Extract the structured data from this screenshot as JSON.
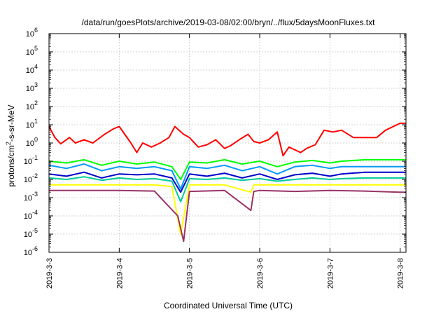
{
  "chart_data": {
    "type": "line",
    "title": "/data/run/goesPlots/archive/2019-03-08/02:00/bryn/../flux/5daysMoonFluxes.txt",
    "xlabel": "Coordinated Universal Time (UTC)",
    "ylabel": "protons/cm2-s-sr-MeV",
    "ylabel_parts": {
      "pre": "protons/cm",
      "sup": "2",
      "post": "-s-sr-MeV"
    },
    "y_scale": "log",
    "ylim": [
      1e-06,
      1000000.0
    ],
    "y_ticks": [
      {
        "base": "10",
        "exp": "-6"
      },
      {
        "base": "10",
        "exp": "-5"
      },
      {
        "base": "10",
        "exp": "-4"
      },
      {
        "base": "10",
        "exp": "-3"
      },
      {
        "base": "10",
        "exp": "-2"
      },
      {
        "base": "10",
        "exp": "-1"
      },
      {
        "base": "10",
        "exp": "0"
      },
      {
        "base": "10",
        "exp": "1"
      },
      {
        "base": "10",
        "exp": "2"
      },
      {
        "base": "10",
        "exp": "3"
      },
      {
        "base": "10",
        "exp": "4"
      },
      {
        "base": "10",
        "exp": "5"
      },
      {
        "base": "10",
        "exp": "6"
      }
    ],
    "xlim": [
      "2019-03-03",
      "2019-03-08 02:00"
    ],
    "x_ticks": [
      "2019-3-3",
      "2019-3-4",
      "2019-3-5",
      "2019-3-6",
      "2019-3-7",
      "2019-3-8"
    ],
    "grid": true,
    "series": [
      {
        "color": "#ff0000",
        "x": [
          "2019-03-03 00:00",
          "2019-03-03 02:00",
          "2019-03-03 04:00",
          "2019-03-03 07:00",
          "2019-03-03 09:00",
          "2019-03-03 12:00",
          "2019-03-03 15:00",
          "2019-03-03 19:00",
          "2019-03-03 22:00",
          "2019-03-04 00:00",
          "2019-03-04 04:00",
          "2019-03-04 06:00",
          "2019-03-04 08:00",
          "2019-03-04 11:00",
          "2019-03-04 14:00",
          "2019-03-04 17:00",
          "2019-03-04 19:00",
          "2019-03-04 22:00",
          "2019-03-05 00:00",
          "2019-03-05 03:00",
          "2019-03-05 06:00",
          "2019-03-05 09:00",
          "2019-03-05 12:00",
          "2019-03-05 14:00",
          "2019-03-05 17:00",
          "2019-03-05 20:00",
          "2019-03-05 22:00",
          "2019-03-06 00:00",
          "2019-03-06 03:00",
          "2019-03-06 06:00",
          "2019-03-06 08:00",
          "2019-03-06 10:00",
          "2019-03-06 14:00",
          "2019-03-06 16:00",
          "2019-03-06 19:00",
          "2019-03-06 22:00",
          "2019-03-07 01:00",
          "2019-03-07 04:00",
          "2019-03-07 08:00",
          "2019-03-07 12:00",
          "2019-03-07 16:00",
          "2019-03-07 19:00",
          "2019-03-08 00:00",
          "2019-03-08 02:00"
        ],
        "y": [
          8,
          2,
          0.9,
          2,
          1,
          1.5,
          1,
          3,
          6,
          8,
          1,
          0.3,
          1,
          0.6,
          1,
          2,
          8,
          3,
          2,
          0.6,
          0.8,
          1.5,
          0.5,
          0.7,
          1.5,
          3,
          1.2,
          1,
          1.5,
          4,
          0.2,
          0.6,
          0.3,
          0.5,
          0.8,
          5,
          4,
          5,
          2,
          2,
          2,
          5,
          12,
          12
        ]
      },
      {
        "color": "#00ff00",
        "x": [
          "2019-03-03 00:00",
          "2019-03-03 06:00",
          "2019-03-03 12:00",
          "2019-03-03 18:00",
          "2019-03-04 00:00",
          "2019-03-04 06:00",
          "2019-03-04 12:00",
          "2019-03-04 18:00",
          "2019-03-04 21:00",
          "2019-03-05 00:00",
          "2019-03-05 06:00",
          "2019-03-05 12:00",
          "2019-03-05 18:00",
          "2019-03-06 00:00",
          "2019-03-06 06:00",
          "2019-03-06 12:00",
          "2019-03-06 18:00",
          "2019-03-07 00:00",
          "2019-03-07 04:00",
          "2019-03-07 12:00",
          "2019-03-08 00:00",
          "2019-03-08 02:00"
        ],
        "y": [
          0.1,
          0.08,
          0.12,
          0.06,
          0.1,
          0.07,
          0.09,
          0.05,
          0.01,
          0.09,
          0.08,
          0.12,
          0.07,
          0.1,
          0.05,
          0.09,
          0.11,
          0.08,
          0.1,
          0.12,
          0.12,
          0.12
        ]
      },
      {
        "color": "#0099ff",
        "x": [
          "2019-03-03 00:00",
          "2019-03-03 06:00",
          "2019-03-03 12:00",
          "2019-03-03 18:00",
          "2019-03-04 00:00",
          "2019-03-04 06:00",
          "2019-03-04 12:00",
          "2019-03-04 18:00",
          "2019-03-04 21:00",
          "2019-03-05 00:00",
          "2019-03-05 06:00",
          "2019-03-05 12:00",
          "2019-03-05 18:00",
          "2019-03-06 00:00",
          "2019-03-06 06:00",
          "2019-03-06 12:00",
          "2019-03-06 18:00",
          "2019-03-07 00:00",
          "2019-03-07 04:00",
          "2019-03-07 12:00",
          "2019-03-08 00:00",
          "2019-03-08 02:00"
        ],
        "y": [
          0.06,
          0.04,
          0.07,
          0.03,
          0.05,
          0.04,
          0.05,
          0.03,
          0.003,
          0.05,
          0.04,
          0.06,
          0.03,
          0.05,
          0.02,
          0.05,
          0.06,
          0.04,
          0.05,
          0.05,
          0.05,
          0.05
        ]
      },
      {
        "color": "#0000cc",
        "x": [
          "2019-03-03 00:00",
          "2019-03-03 06:00",
          "2019-03-03 12:00",
          "2019-03-03 18:00",
          "2019-03-04 00:00",
          "2019-03-04 06:00",
          "2019-03-04 12:00",
          "2019-03-04 18:00",
          "2019-03-04 21:00",
          "2019-03-05 00:00",
          "2019-03-05 06:00",
          "2019-03-05 12:00",
          "2019-03-05 18:00",
          "2019-03-06 00:00",
          "2019-03-06 06:00",
          "2019-03-06 12:00",
          "2019-03-06 18:00",
          "2019-03-07 00:00",
          "2019-03-07 04:00",
          "2019-03-07 12:00",
          "2019-03-08 00:00",
          "2019-03-08 02:00"
        ],
        "y": [
          0.02,
          0.015,
          0.025,
          0.012,
          0.02,
          0.018,
          0.02,
          0.012,
          0.002,
          0.02,
          0.015,
          0.022,
          0.012,
          0.02,
          0.01,
          0.018,
          0.022,
          0.015,
          0.02,
          0.025,
          0.025,
          0.025
        ]
      },
      {
        "color": "#00cc99",
        "x": [
          "2019-03-03 00:00",
          "2019-03-03 06:00",
          "2019-03-03 12:00",
          "2019-03-03 18:00",
          "2019-03-04 00:00",
          "2019-03-04 06:00",
          "2019-03-04 12:00",
          "2019-03-04 18:00",
          "2019-03-04 21:00",
          "2019-03-05 00:00",
          "2019-03-05 06:00",
          "2019-03-05 12:00",
          "2019-03-05 18:00",
          "2019-03-06 00:00",
          "2019-03-06 06:00",
          "2019-03-06 12:00",
          "2019-03-06 18:00",
          "2019-03-07 00:00",
          "2019-03-07 04:00",
          "2019-03-07 12:00",
          "2019-03-08 00:00",
          "2019-03-08 02:00"
        ],
        "y": [
          0.012,
          0.01,
          0.014,
          0.009,
          0.012,
          0.01,
          0.011,
          0.008,
          0.0006,
          0.011,
          0.01,
          0.012,
          0.009,
          0.011,
          0.008,
          0.01,
          0.012,
          0.01,
          0.011,
          0.012,
          0.012,
          0.012
        ]
      },
      {
        "color": "#ffff00",
        "x": [
          "2019-03-03 00:00",
          "2019-03-03 12:00",
          "2019-03-04 00:00",
          "2019-03-04 12:00",
          "2019-03-04 18:00",
          "2019-03-04 21:00",
          "2019-03-05 00:00",
          "2019-03-05 12:00",
          "2019-03-05 21:00",
          "2019-03-05 22:00",
          "2019-03-06 00:00",
          "2019-03-06 12:00",
          "2019-03-07 00:00",
          "2019-03-07 12:00",
          "2019-03-08 00:00",
          "2019-03-08 02:00"
        ],
        "y": [
          0.005,
          0.005,
          0.005,
          0.005,
          0.004,
          1e-05,
          0.005,
          0.005,
          0.002,
          0.005,
          0.005,
          0.005,
          0.005,
          0.005,
          0.005,
          0.005
        ]
      },
      {
        "color": "#993366",
        "x": [
          "2019-03-03 00:00",
          "2019-03-03 12:00",
          "2019-03-04 00:00",
          "2019-03-04 12:00",
          "2019-03-04 20:00",
          "2019-03-04 22:00",
          "2019-03-05 00:00",
          "2019-03-05 12:00",
          "2019-03-05 21:00",
          "2019-03-05 22:00",
          "2019-03-06 00:00",
          "2019-03-06 12:00",
          "2019-03-07 00:00",
          "2019-03-07 12:00",
          "2019-03-08 00:00",
          "2019-03-08 02:00"
        ],
        "y": [
          0.0025,
          0.0025,
          0.0025,
          0.0023,
          0.0001,
          4e-06,
          0.0022,
          0.0025,
          0.0002,
          0.0022,
          0.0025,
          0.0022,
          0.0025,
          0.0023,
          0.002,
          0.002
        ]
      }
    ]
  }
}
